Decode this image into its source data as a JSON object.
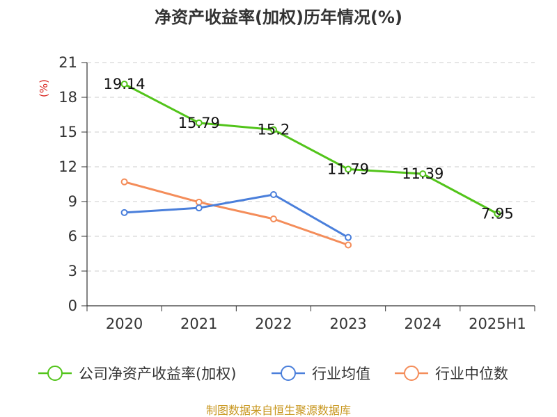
{
  "chart_data": {
    "type": "line",
    "title": "净资产收益率(加权)历年情况(%)",
    "ylabel": "(%)",
    "categories": [
      "2020",
      "2021",
      "2022",
      "2023",
      "2024",
      "2025H1"
    ],
    "ylim": [
      0,
      21
    ],
    "yticks": [
      0,
      3,
      6,
      9,
      12,
      15,
      18,
      21
    ],
    "grid": true,
    "legend_position": "bottom",
    "series": [
      {
        "name": "公司净资产收益率(加权)",
        "color": "#52c41a",
        "values": [
          19.14,
          15.79,
          15.2,
          11.79,
          11.39,
          7.95
        ],
        "labels": [
          "19.14",
          "15.79",
          "15.2",
          "11.79",
          "11.39",
          "7.95"
        ]
      },
      {
        "name": "行业均值",
        "color": "#4a7fdb",
        "values": [
          8.05,
          8.45,
          9.6,
          5.9,
          null,
          null
        ]
      },
      {
        "name": "行业中位数",
        "color": "#f48d5a",
        "values": [
          10.7,
          8.95,
          7.5,
          5.25,
          null,
          null
        ]
      }
    ],
    "source": "制图数据来自恒生聚源数据库"
  }
}
